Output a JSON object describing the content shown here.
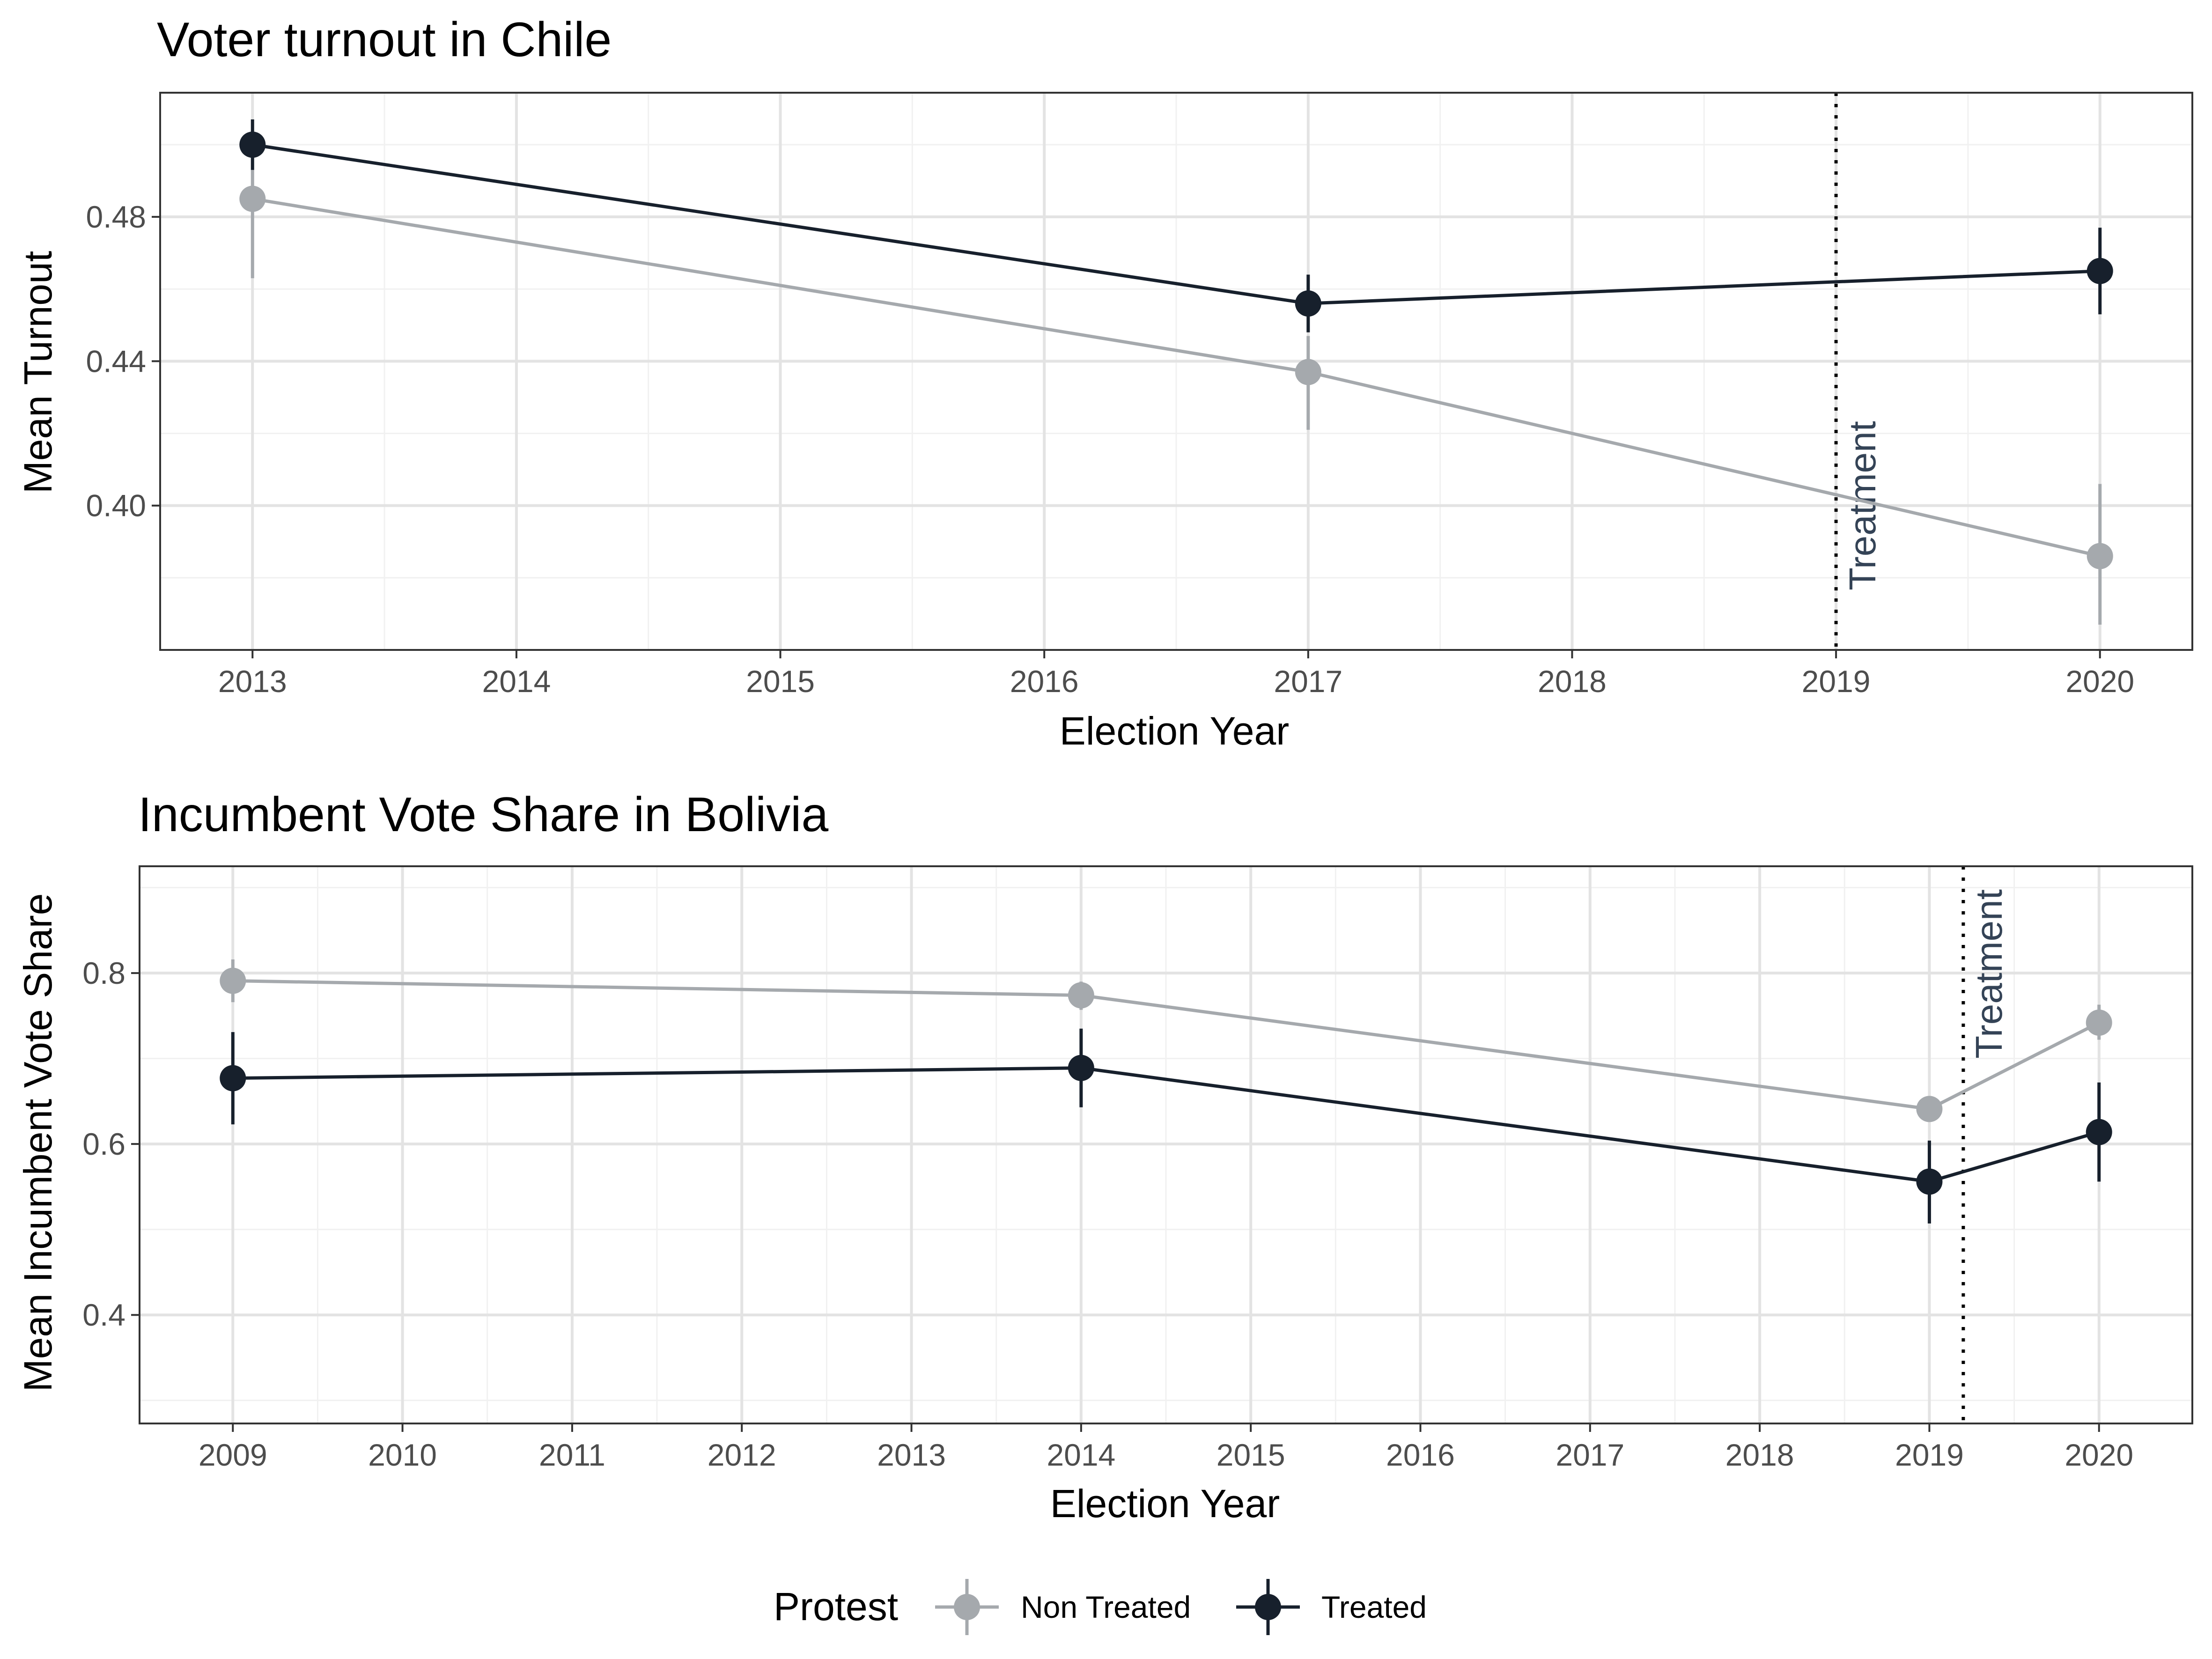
{
  "colors": {
    "non_treated": "#a5a9ad",
    "treated": "#17202c",
    "annotation": "#344356",
    "grid_major": "#e3e3e3",
    "grid_minor": "#f1f1f1",
    "panel_border": "#333333"
  },
  "legend": {
    "title": "Protest",
    "position": "bottom",
    "items": [
      {
        "key": "non_treated",
        "label": "Non Treated"
      },
      {
        "key": "treated",
        "label": "Treated"
      }
    ]
  },
  "chart_data": [
    {
      "type": "line",
      "title": "Voter turnout in Chile",
      "xlabel": "Election Year",
      "ylabel": "Mean Turnout",
      "x_ticks": [
        2013,
        2014,
        2015,
        2016,
        2017,
        2018,
        2019,
        2020
      ],
      "y_ticks": [
        0.4,
        0.44,
        0.48
      ],
      "y_tick_labels": [
        "0.40",
        "0.44",
        "0.48"
      ],
      "xlim": [
        2012.65,
        2020.35
      ],
      "ylim": [
        0.36,
        0.5144
      ],
      "grid": true,
      "series": [
        {
          "key": "non_treated",
          "name": "Non Treated",
          "x": [
            2013,
            2017,
            2020
          ],
          "y": [
            0.485,
            0.437,
            0.386
          ],
          "lower": [
            0.463,
            0.421,
            0.367
          ],
          "upper": [
            0.493,
            0.447,
            0.406
          ]
        },
        {
          "key": "treated",
          "name": "Treated",
          "x": [
            2013,
            2017,
            2020
          ],
          "y": [
            0.5,
            0.456,
            0.465
          ],
          "lower": [
            0.493,
            0.448,
            0.453
          ],
          "upper": [
            0.507,
            0.464,
            0.477
          ]
        }
      ],
      "vline": {
        "x": 2019,
        "label": "Treatment",
        "style": "dotted"
      }
    },
    {
      "type": "line",
      "title": "Incumbent Vote Share in Bolivia",
      "xlabel": "Election Year",
      "ylabel": "Mean Incumbent Vote Share",
      "x_ticks": [
        2009,
        2010,
        2011,
        2012,
        2013,
        2014,
        2015,
        2016,
        2017,
        2018,
        2019,
        2020
      ],
      "y_ticks": [
        0.4,
        0.6,
        0.8
      ],
      "y_tick_labels": [
        "0.4",
        "0.6",
        "0.8"
      ],
      "xlim": [
        2008.45,
        2020.55
      ],
      "ylim": [
        0.273,
        0.925
      ],
      "grid": true,
      "series": [
        {
          "key": "non_treated",
          "name": "Non Treated",
          "x": [
            2009,
            2014,
            2019,
            2020
          ],
          "y": [
            0.791,
            0.774,
            0.641,
            0.742
          ],
          "lower": [
            0.766,
            0.757,
            0.627,
            0.722
          ],
          "upper": [
            0.816,
            0.79,
            0.654,
            0.763
          ]
        },
        {
          "key": "treated",
          "name": "Treated",
          "x": [
            2009,
            2014,
            2019,
            2020
          ],
          "y": [
            0.677,
            0.689,
            0.556,
            0.614
          ],
          "lower": [
            0.623,
            0.643,
            0.507,
            0.556
          ],
          "upper": [
            0.731,
            0.735,
            0.604,
            0.672
          ]
        }
      ],
      "vline": {
        "x": 2019.2,
        "label": "Treatment",
        "style": "dotted"
      }
    }
  ]
}
